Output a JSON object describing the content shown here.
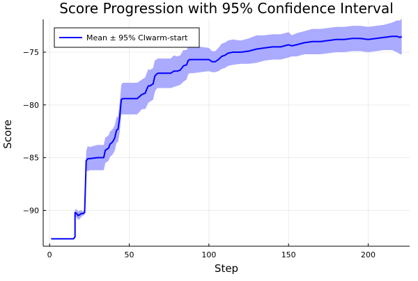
{
  "chart_data": {
    "type": "line",
    "title": "Score Progression with 95% Confidence Interval",
    "xlabel": "Step",
    "ylabel": "Score",
    "xlim": [
      -4,
      226
    ],
    "ylim": [
      -93.4,
      -71.9
    ],
    "x_ticks": [
      0,
      50,
      100,
      150,
      200
    ],
    "y_ticks": [
      -90,
      -85,
      -80,
      -75
    ],
    "grid": true,
    "legend": {
      "position": "top-left",
      "entries": [
        "Mean ± 95% CIwarm-start"
      ]
    },
    "colors": {
      "line": "#0000ff",
      "band": "#aaaaff",
      "grid": "#ececec",
      "frame": "#000000"
    },
    "series": [
      {
        "name": "Mean ± 95% CIwarm-start",
        "x": [
          1,
          15,
          16,
          16,
          17,
          18,
          19,
          20,
          21,
          22,
          23,
          24,
          25,
          30,
          34,
          35,
          36,
          37,
          38,
          39,
          40,
          41,
          42,
          43,
          44,
          45,
          46,
          48,
          55,
          58,
          60,
          61,
          62,
          63,
          65,
          66,
          67,
          68,
          69,
          72,
          76,
          78,
          80,
          82,
          84,
          86,
          87,
          88,
          90,
          95,
          100,
          102,
          104,
          106,
          108,
          110,
          112,
          115,
          120,
          125,
          130,
          135,
          140,
          145,
          150,
          152,
          155,
          160,
          165,
          170,
          175,
          180,
          185,
          190,
          195,
          200,
          205,
          210,
          215,
          218,
          220,
          221
        ],
        "mean": [
          -92.7,
          -92.7,
          -92.5,
          -90.2,
          -90.3,
          -90.5,
          -90.4,
          -90.3,
          -90.3,
          -90.2,
          -85.3,
          -85.1,
          -85.1,
          -85.0,
          -85.0,
          -84.3,
          -84.2,
          -84.1,
          -83.7,
          -83.6,
          -83.4,
          -83.1,
          -82.4,
          -82.3,
          -81.2,
          -79.5,
          -79.4,
          -79.4,
          -79.4,
          -79.0,
          -78.9,
          -78.5,
          -78.2,
          -78.2,
          -78.0,
          -77.3,
          -77.1,
          -77.0,
          -77.0,
          -77.0,
          -77.0,
          -76.8,
          -76.8,
          -76.7,
          -76.3,
          -76.2,
          -75.8,
          -75.7,
          -75.7,
          -75.7,
          -75.7,
          -75.9,
          -75.9,
          -75.7,
          -75.4,
          -75.3,
          -75.1,
          -75.0,
          -75.0,
          -74.9,
          -74.7,
          -74.6,
          -74.5,
          -74.5,
          -74.3,
          -74.4,
          -74.3,
          -74.1,
          -74.0,
          -74.0,
          -73.9,
          -73.8,
          -73.8,
          -73.7,
          -73.7,
          -73.8,
          -73.7,
          -73.6,
          -73.5,
          -73.5,
          -73.6,
          -73.5
        ],
        "lower": [
          -92.7,
          -92.7,
          -92.6,
          -90.5,
          -90.7,
          -90.9,
          -90.8,
          -90.6,
          -90.5,
          -90.4,
          -86.2,
          -86.3,
          -86.2,
          -86.2,
          -86.2,
          -85.5,
          -85.4,
          -85.3,
          -84.9,
          -84.8,
          -84.6,
          -84.3,
          -83.6,
          -83.5,
          -82.6,
          -80.9,
          -80.9,
          -80.9,
          -80.9,
          -80.4,
          -80.4,
          -80.1,
          -79.8,
          -79.7,
          -79.5,
          -78.8,
          -78.5,
          -78.4,
          -78.4,
          -78.4,
          -78.4,
          -78.3,
          -78.2,
          -78.1,
          -77.8,
          -77.6,
          -77.1,
          -77.0,
          -77.0,
          -76.9,
          -76.8,
          -76.9,
          -76.9,
          -76.8,
          -76.6,
          -76.5,
          -76.3,
          -76.2,
          -76.1,
          -76.1,
          -76.0,
          -75.8,
          -75.7,
          -75.7,
          -75.5,
          -75.4,
          -75.4,
          -75.2,
          -75.2,
          -75.2,
          -75.1,
          -75.0,
          -75.0,
          -74.9,
          -74.9,
          -75.0,
          -74.9,
          -74.8,
          -74.8,
          -75.0,
          -75.2,
          -75.2
        ],
        "upper": [
          -92.7,
          -92.7,
          -92.4,
          -89.9,
          -89.9,
          -90.1,
          -90.0,
          -90.0,
          -90.1,
          -90.0,
          -84.4,
          -83.9,
          -84.0,
          -83.8,
          -83.8,
          -83.1,
          -83.0,
          -82.9,
          -82.5,
          -82.4,
          -82.2,
          -81.9,
          -81.2,
          -81.1,
          -79.8,
          -78.1,
          -77.9,
          -77.9,
          -77.9,
          -77.6,
          -77.4,
          -77.0,
          -76.6,
          -76.7,
          -76.5,
          -75.8,
          -75.7,
          -75.6,
          -75.6,
          -75.6,
          -75.6,
          -75.3,
          -75.4,
          -75.3,
          -74.8,
          -74.8,
          -74.5,
          -74.4,
          -74.4,
          -74.5,
          -74.6,
          -74.9,
          -74.9,
          -74.6,
          -74.2,
          -74.1,
          -73.9,
          -73.8,
          -73.9,
          -73.7,
          -73.4,
          -73.4,
          -73.3,
          -73.3,
          -73.1,
          -73.4,
          -73.2,
          -73.0,
          -72.8,
          -72.8,
          -72.7,
          -72.6,
          -72.6,
          -72.5,
          -72.5,
          -72.6,
          -72.5,
          -72.4,
          -72.2,
          -72.0,
          -72.0,
          -71.8
        ]
      }
    ]
  }
}
